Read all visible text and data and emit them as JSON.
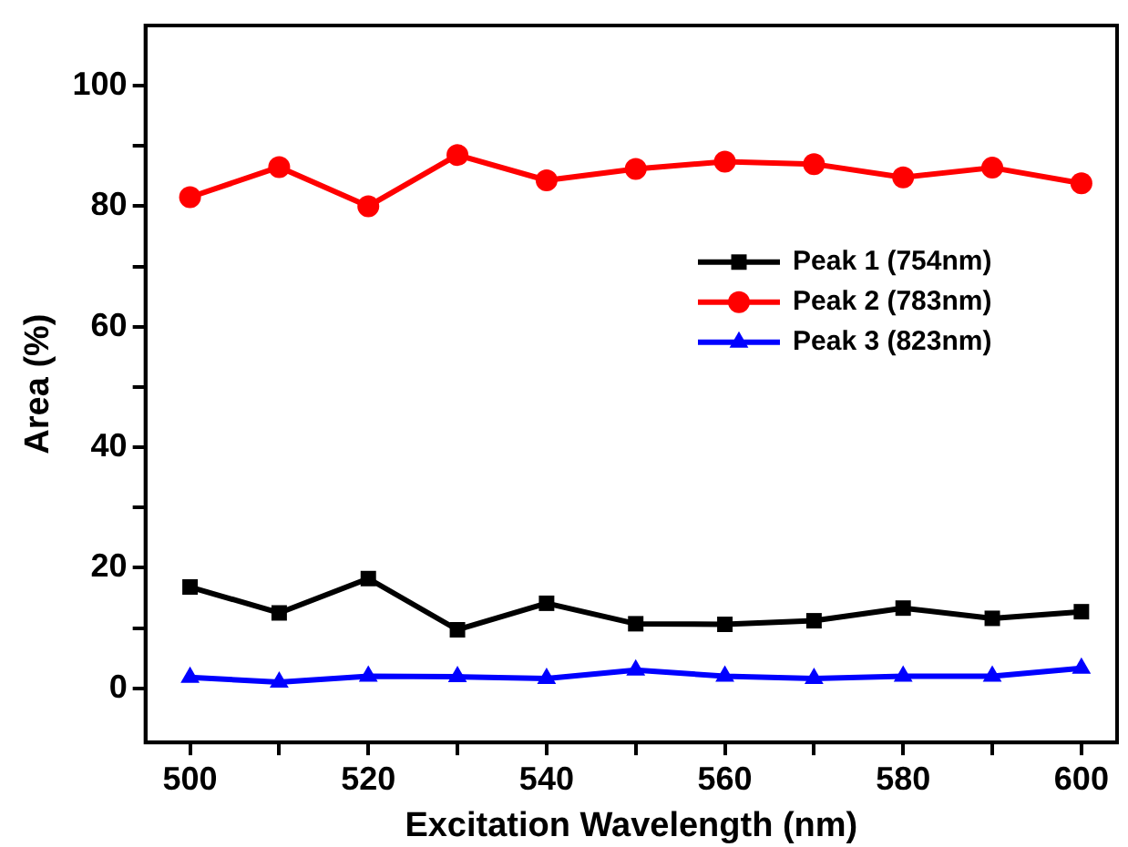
{
  "chart_data": {
    "type": "line",
    "xlabel": "Excitation Wavelength (nm)",
    "ylabel": "Area (%)",
    "x": [
      500,
      510,
      520,
      530,
      540,
      550,
      560,
      570,
      580,
      590,
      600
    ],
    "series": [
      {
        "name": "Peak 1 (754nm)",
        "color": "#000000",
        "marker": "square",
        "values": [
          16.8,
          12.5,
          18.2,
          9.7,
          14.1,
          10.7,
          10.6,
          11.2,
          13.3,
          11.6,
          12.7
        ]
      },
      {
        "name": "Peak 2 (783nm)",
        "color": "#ff0000",
        "marker": "circle",
        "values": [
          81.5,
          86.5,
          80,
          88.5,
          84.3,
          86.2,
          87.4,
          87,
          84.8,
          86.4,
          83.8
        ]
      },
      {
        "name": "Peak 3 (823nm)",
        "color": "#0000ff",
        "marker": "triangle",
        "values": [
          1.8,
          1.0,
          2.0,
          1.9,
          1.6,
          3.0,
          2.0,
          1.6,
          2.0,
          2.0,
          3.3
        ]
      }
    ],
    "xlim": [
      495,
      604
    ],
    "ylim": [
      -9,
      110
    ],
    "xticks": [
      500,
      {
        "value": 510,
        "label": null
      },
      520,
      {
        "value": 530,
        "label": null
      },
      540,
      {
        "value": 550,
        "label": null
      },
      560,
      {
        "value": 570,
        "label": null
      },
      580,
      {
        "value": 590,
        "label": null
      },
      600
    ],
    "yticks": [
      0,
      {
        "value": 10,
        "label": null
      },
      20,
      {
        "value": 30,
        "label": null
      },
      40,
      {
        "value": 50,
        "label": null
      },
      60,
      {
        "value": 70,
        "label": null
      },
      80,
      {
        "value": 90,
        "label": null
      },
      100
    ],
    "grid": false,
    "legend": "right",
    "line_style": "solid"
  }
}
